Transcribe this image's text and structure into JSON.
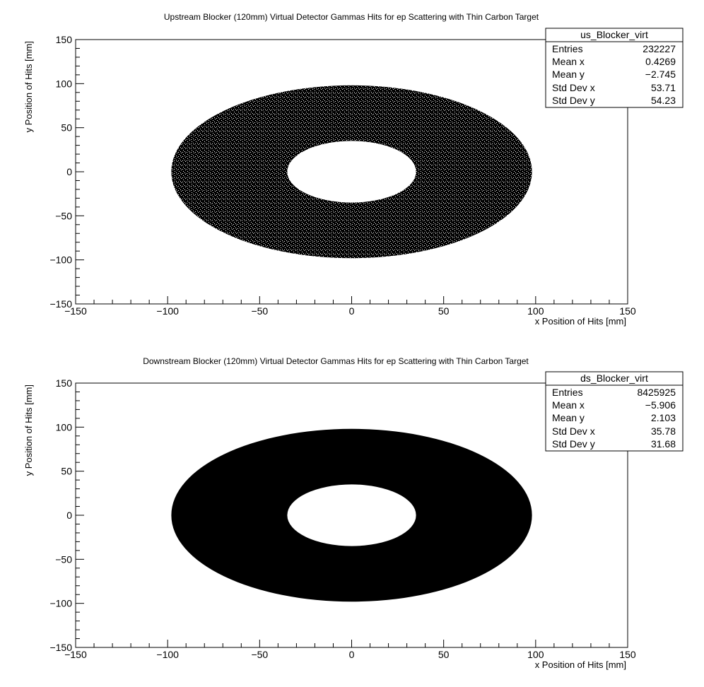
{
  "chart_data": [
    {
      "type": "scatter",
      "title": "Upstream Blocker (120mm) Virtual Detector Gammas Hits for ep Scattering with Thin Carbon Target",
      "xlabel": "x Position of Hits [mm]",
      "ylabel": "y Position of Hits [mm]",
      "xlim": [
        -150,
        150
      ],
      "ylim": [
        -150,
        150
      ],
      "x_ticks": [
        -150,
        -100,
        -50,
        0,
        50,
        100,
        150
      ],
      "y_ticks": [
        -150,
        -100,
        -50,
        0,
        50,
        100,
        150
      ],
      "x_tick_labels": [
        "−150",
        "−100",
        "−50",
        "0",
        "50",
        "100",
        "150"
      ],
      "y_tick_labels": [
        "−150",
        "−100",
        "−50",
        "0",
        "50",
        "100",
        "150"
      ],
      "distribution": {
        "shape": "annulus",
        "center": [
          0,
          0
        ],
        "inner_radius_x": 35,
        "inner_radius_y": 35,
        "outer_radius_x": 98,
        "outer_radius_y": 98,
        "density": "sparse"
      },
      "stats_box": {
        "name": "us_Blocker_virt",
        "rows": [
          {
            "label": "Entries",
            "value": "232227"
          },
          {
            "label": "Mean x",
            "value": "0.4269"
          },
          {
            "label": "Mean y",
            "value": "−2.745"
          },
          {
            "label": "Std Dev x",
            "value": "53.71"
          },
          {
            "label": "Std Dev y",
            "value": "54.23"
          }
        ]
      }
    },
    {
      "type": "scatter",
      "title": "Downstream Blocker (120mm) Virtual Detector Gammas Hits for ep Scattering with Thin Carbon Target",
      "xlabel": "x Position of Hits [mm]",
      "ylabel": "y Position of Hits [mm]",
      "xlim": [
        -150,
        150
      ],
      "ylim": [
        -150,
        150
      ],
      "x_ticks": [
        -150,
        -100,
        -50,
        0,
        50,
        100,
        150
      ],
      "y_ticks": [
        -150,
        -100,
        -50,
        0,
        50,
        100,
        150
      ],
      "x_tick_labels": [
        "−150",
        "−100",
        "−50",
        "0",
        "50",
        "100",
        "150"
      ],
      "y_tick_labels": [
        "−150",
        "−100",
        "−50",
        "0",
        "50",
        "100",
        "150"
      ],
      "distribution": {
        "shape": "annulus",
        "center": [
          0,
          0
        ],
        "inner_radius_x": 35,
        "inner_radius_y": 35,
        "outer_radius_x": 98,
        "outer_radius_y": 98,
        "density": "saturated"
      },
      "stats_box": {
        "name": "ds_Blocker_virt",
        "rows": [
          {
            "label": "Entries",
            "value": "8425925"
          },
          {
            "label": "Mean x",
            "value": "−5.906"
          },
          {
            "label": "Mean y",
            "value": "2.103"
          },
          {
            "label": "Std Dev x",
            "value": "35.78"
          },
          {
            "label": "Std Dev y",
            "value": "31.68"
          }
        ]
      }
    }
  ]
}
